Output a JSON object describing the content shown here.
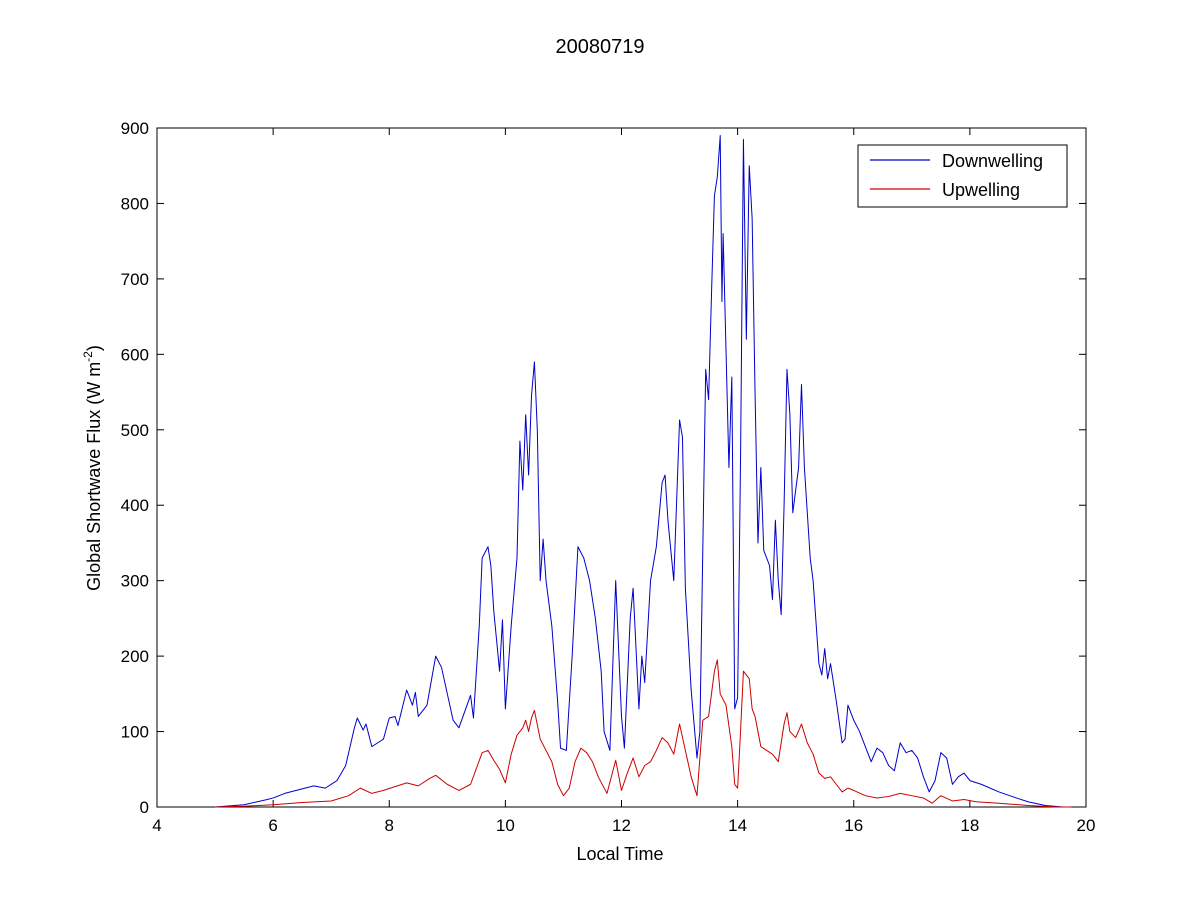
{
  "chart_data": {
    "type": "line",
    "title": "20080719",
    "xlabel": "Local Time",
    "ylabel_main": "Global Shortwave Flux (W m",
    "ylabel_sup": "-2",
    "ylabel_close": ")",
    "xlim": [
      4,
      20
    ],
    "ylim": [
      0,
      900
    ],
    "xticks": [
      4,
      6,
      8,
      10,
      12,
      14,
      16,
      18,
      20
    ],
    "yticks": [
      0,
      100,
      200,
      300,
      400,
      500,
      600,
      700,
      800,
      900
    ],
    "grid": false,
    "legend_position": "top-right",
    "series": [
      {
        "name": "Downwelling",
        "color": "#0000cc",
        "points": [
          [
            5.0,
            0
          ],
          [
            5.5,
            3
          ],
          [
            5.9,
            10
          ],
          [
            6.0,
            12
          ],
          [
            6.2,
            18
          ],
          [
            6.5,
            24
          ],
          [
            6.7,
            28
          ],
          [
            6.9,
            25
          ],
          [
            7.1,
            35
          ],
          [
            7.25,
            55
          ],
          [
            7.4,
            105
          ],
          [
            7.45,
            118
          ],
          [
            7.55,
            102
          ],
          [
            7.6,
            110
          ],
          [
            7.7,
            80
          ],
          [
            7.8,
            85
          ],
          [
            7.9,
            90
          ],
          [
            8.0,
            118
          ],
          [
            8.1,
            120
          ],
          [
            8.15,
            108
          ],
          [
            8.3,
            155
          ],
          [
            8.4,
            135
          ],
          [
            8.45,
            152
          ],
          [
            8.5,
            120
          ],
          [
            8.65,
            135
          ],
          [
            8.8,
            200
          ],
          [
            8.9,
            185
          ],
          [
            9.0,
            150
          ],
          [
            9.1,
            115
          ],
          [
            9.2,
            105
          ],
          [
            9.4,
            148
          ],
          [
            9.45,
            118
          ],
          [
            9.55,
            240
          ],
          [
            9.6,
            330
          ],
          [
            9.7,
            345
          ],
          [
            9.75,
            320
          ],
          [
            9.8,
            260
          ],
          [
            9.9,
            180
          ],
          [
            9.95,
            248
          ],
          [
            10.0,
            130
          ],
          [
            10.1,
            240
          ],
          [
            10.2,
            330
          ],
          [
            10.25,
            485
          ],
          [
            10.3,
            420
          ],
          [
            10.35,
            520
          ],
          [
            10.4,
            440
          ],
          [
            10.45,
            545
          ],
          [
            10.5,
            590
          ],
          [
            10.55,
            500
          ],
          [
            10.6,
            300
          ],
          [
            10.65,
            355
          ],
          [
            10.7,
            300
          ],
          [
            10.8,
            240
          ],
          [
            10.9,
            140
          ],
          [
            10.95,
            78
          ],
          [
            11.05,
            75
          ],
          [
            11.15,
            200
          ],
          [
            11.25,
            345
          ],
          [
            11.35,
            330
          ],
          [
            11.45,
            300
          ],
          [
            11.55,
            250
          ],
          [
            11.65,
            180
          ],
          [
            11.7,
            100
          ],
          [
            11.8,
            75
          ],
          [
            11.9,
            300
          ],
          [
            12.0,
            120
          ],
          [
            12.05,
            78
          ],
          [
            12.15,
            250
          ],
          [
            12.2,
            290
          ],
          [
            12.3,
            130
          ],
          [
            12.35,
            200
          ],
          [
            12.4,
            165
          ],
          [
            12.5,
            300
          ],
          [
            12.6,
            345
          ],
          [
            12.7,
            430
          ],
          [
            12.75,
            440
          ],
          [
            12.8,
            380
          ],
          [
            12.9,
            300
          ],
          [
            13.0,
            513
          ],
          [
            13.05,
            490
          ],
          [
            13.1,
            290
          ],
          [
            13.2,
            155
          ],
          [
            13.3,
            65
          ],
          [
            13.35,
            100
          ],
          [
            13.45,
            580
          ],
          [
            13.5,
            540
          ],
          [
            13.55,
            680
          ],
          [
            13.6,
            810
          ],
          [
            13.65,
            835
          ],
          [
            13.7,
            890
          ],
          [
            13.73,
            670
          ],
          [
            13.75,
            760
          ],
          [
            13.85,
            450
          ],
          [
            13.9,
            570
          ],
          [
            13.95,
            130
          ],
          [
            14.0,
            145
          ],
          [
            14.05,
            460
          ],
          [
            14.1,
            885
          ],
          [
            14.15,
            620
          ],
          [
            14.2,
            850
          ],
          [
            14.25,
            780
          ],
          [
            14.3,
            550
          ],
          [
            14.35,
            350
          ],
          [
            14.4,
            450
          ],
          [
            14.45,
            340
          ],
          [
            14.55,
            320
          ],
          [
            14.6,
            275
          ],
          [
            14.65,
            380
          ],
          [
            14.7,
            300
          ],
          [
            14.75,
            255
          ],
          [
            14.8,
            400
          ],
          [
            14.85,
            580
          ],
          [
            14.9,
            520
          ],
          [
            14.95,
            390
          ],
          [
            15.05,
            450
          ],
          [
            15.1,
            560
          ],
          [
            15.15,
            450
          ],
          [
            15.2,
            390
          ],
          [
            15.25,
            330
          ],
          [
            15.3,
            300
          ],
          [
            15.4,
            190
          ],
          [
            15.45,
            175
          ],
          [
            15.5,
            210
          ],
          [
            15.55,
            170
          ],
          [
            15.6,
            190
          ],
          [
            15.7,
            140
          ],
          [
            15.8,
            85
          ],
          [
            15.85,
            90
          ],
          [
            15.9,
            135
          ],
          [
            16.0,
            115
          ],
          [
            16.1,
            100
          ],
          [
            16.2,
            80
          ],
          [
            16.3,
            60
          ],
          [
            16.4,
            78
          ],
          [
            16.5,
            72
          ],
          [
            16.6,
            55
          ],
          [
            16.7,
            48
          ],
          [
            16.8,
            85
          ],
          [
            16.9,
            72
          ],
          [
            17.0,
            75
          ],
          [
            17.1,
            65
          ],
          [
            17.2,
            40
          ],
          [
            17.3,
            20
          ],
          [
            17.4,
            35
          ],
          [
            17.5,
            72
          ],
          [
            17.6,
            65
          ],
          [
            17.7,
            30
          ],
          [
            17.8,
            40
          ],
          [
            17.9,
            45
          ],
          [
            18.0,
            35
          ],
          [
            18.2,
            30
          ],
          [
            18.5,
            20
          ],
          [
            18.8,
            12
          ],
          [
            19.0,
            7
          ],
          [
            19.3,
            2
          ],
          [
            19.6,
            0
          ],
          [
            19.75,
            0
          ]
        ]
      },
      {
        "name": "Upwelling",
        "color": "#cc0000",
        "points": [
          [
            5.0,
            0
          ],
          [
            5.5,
            1
          ],
          [
            6.0,
            3
          ],
          [
            6.5,
            6
          ],
          [
            7.0,
            8
          ],
          [
            7.3,
            15
          ],
          [
            7.5,
            25
          ],
          [
            7.7,
            18
          ],
          [
            7.9,
            22
          ],
          [
            8.1,
            27
          ],
          [
            8.3,
            32
          ],
          [
            8.5,
            28
          ],
          [
            8.7,
            38
          ],
          [
            8.8,
            42
          ],
          [
            9.0,
            30
          ],
          [
            9.2,
            22
          ],
          [
            9.4,
            30
          ],
          [
            9.6,
            72
          ],
          [
            9.7,
            75
          ],
          [
            9.8,
            62
          ],
          [
            9.9,
            50
          ],
          [
            10.0,
            32
          ],
          [
            10.1,
            70
          ],
          [
            10.2,
            95
          ],
          [
            10.3,
            105
          ],
          [
            10.35,
            115
          ],
          [
            10.4,
            100
          ],
          [
            10.45,
            118
          ],
          [
            10.5,
            128
          ],
          [
            10.6,
            90
          ],
          [
            10.7,
            75
          ],
          [
            10.8,
            60
          ],
          [
            10.9,
            30
          ],
          [
            11.0,
            15
          ],
          [
            11.1,
            25
          ],
          [
            11.2,
            60
          ],
          [
            11.3,
            78
          ],
          [
            11.4,
            72
          ],
          [
            11.5,
            60
          ],
          [
            11.6,
            40
          ],
          [
            11.75,
            18
          ],
          [
            11.9,
            62
          ],
          [
            12.0,
            22
          ],
          [
            12.1,
            45
          ],
          [
            12.2,
            65
          ],
          [
            12.3,
            40
          ],
          [
            12.4,
            55
          ],
          [
            12.5,
            60
          ],
          [
            12.6,
            75
          ],
          [
            12.7,
            92
          ],
          [
            12.8,
            85
          ],
          [
            12.9,
            70
          ],
          [
            13.0,
            110
          ],
          [
            13.1,
            75
          ],
          [
            13.2,
            40
          ],
          [
            13.3,
            15
          ],
          [
            13.4,
            115
          ],
          [
            13.5,
            120
          ],
          [
            13.6,
            180
          ],
          [
            13.65,
            195
          ],
          [
            13.7,
            150
          ],
          [
            13.8,
            135
          ],
          [
            13.9,
            80
          ],
          [
            13.95,
            30
          ],
          [
            14.0,
            25
          ],
          [
            14.05,
            100
          ],
          [
            14.1,
            180
          ],
          [
            14.2,
            170
          ],
          [
            14.25,
            130
          ],
          [
            14.3,
            120
          ],
          [
            14.4,
            80
          ],
          [
            14.5,
            75
          ],
          [
            14.6,
            70
          ],
          [
            14.7,
            60
          ],
          [
            14.8,
            110
          ],
          [
            14.85,
            125
          ],
          [
            14.9,
            100
          ],
          [
            15.0,
            92
          ],
          [
            15.1,
            110
          ],
          [
            15.2,
            85
          ],
          [
            15.3,
            70
          ],
          [
            15.4,
            45
          ],
          [
            15.5,
            38
          ],
          [
            15.6,
            40
          ],
          [
            15.7,
            30
          ],
          [
            15.8,
            20
          ],
          [
            15.9,
            25
          ],
          [
            16.0,
            22
          ],
          [
            16.2,
            15
          ],
          [
            16.4,
            12
          ],
          [
            16.6,
            14
          ],
          [
            16.8,
            18
          ],
          [
            17.0,
            15
          ],
          [
            17.2,
            12
          ],
          [
            17.35,
            5
          ],
          [
            17.5,
            15
          ],
          [
            17.7,
            8
          ],
          [
            17.9,
            10
          ],
          [
            18.1,
            7
          ],
          [
            18.5,
            5
          ],
          [
            19.0,
            2
          ],
          [
            19.5,
            0
          ],
          [
            19.75,
            0
          ]
        ]
      }
    ]
  }
}
